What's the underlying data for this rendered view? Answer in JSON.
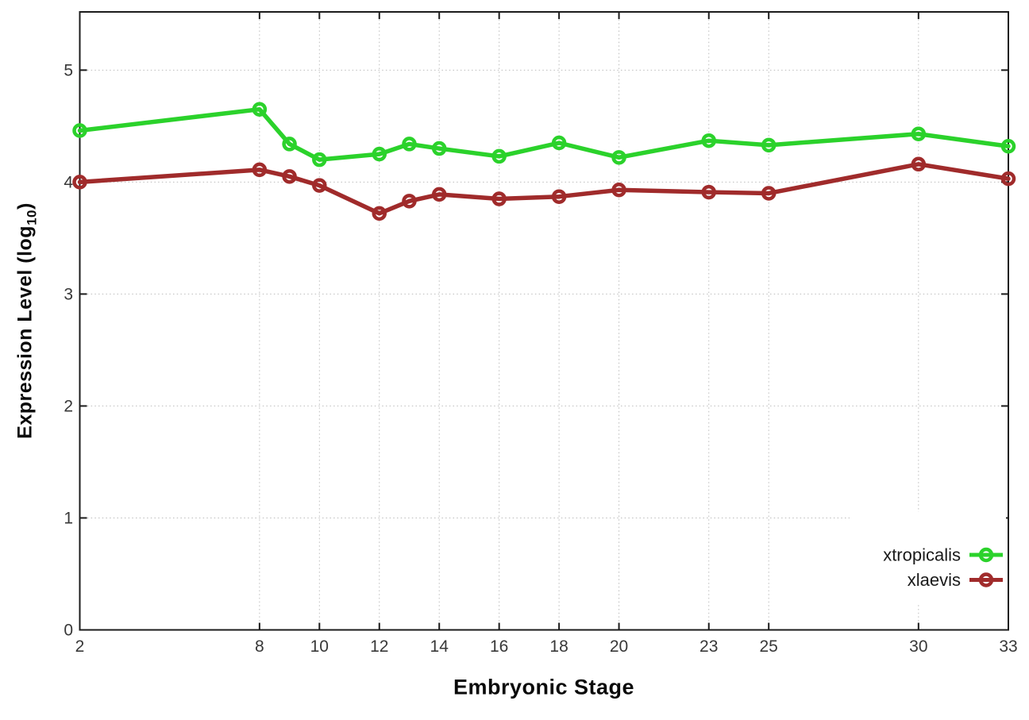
{
  "chart_data": {
    "type": "line",
    "title": "",
    "xlabel": "Embryonic Stage",
    "ylabel_main": "Expression Level (log",
    "ylabel_sub": "10",
    "ylabel_close": ")",
    "xlim": [
      2,
      33
    ],
    "ylim": [
      0,
      5.5
    ],
    "x_ticks": [
      2,
      8,
      10,
      12,
      14,
      16,
      18,
      20,
      23,
      25,
      30,
      33
    ],
    "y_ticks": [
      0,
      1,
      2,
      3,
      4,
      5
    ],
    "grid": true,
    "legend_position": "inside-bottom-right",
    "x": [
      2,
      8,
      9,
      10,
      12,
      13,
      14,
      16,
      18,
      20,
      23,
      25,
      30,
      33
    ],
    "series": [
      {
        "name": "xtropicalis",
        "color": "#2bd22b",
        "marker": "open-circle",
        "values": [
          4.46,
          4.65,
          4.34,
          4.2,
          4.25,
          4.34,
          4.3,
          4.23,
          4.35,
          4.22,
          4.37,
          4.33,
          4.43,
          4.32
        ]
      },
      {
        "name": "xlaevis",
        "color": "#a02b2b",
        "marker": "open-circle",
        "values": [
          4.0,
          4.11,
          4.05,
          3.97,
          3.72,
          3.83,
          3.89,
          3.85,
          3.87,
          3.93,
          3.91,
          3.9,
          4.16,
          4.03
        ]
      }
    ]
  },
  "style": {
    "border_color": "#1c1c1c",
    "grid_color": "#bcbcbc",
    "tick_label_color": "#383838",
    "legend_text_color": "#1a1a1a",
    "background": "#ffffff"
  }
}
